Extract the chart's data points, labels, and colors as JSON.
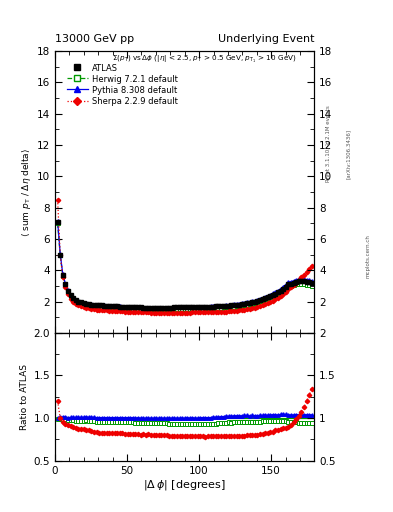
{
  "title_left": "13000 GeV pp",
  "title_right": "Underlying Event",
  "ylabel_main": "⟨ sum p_T / Δη delta⟩",
  "ylabel_ratio": "Ratio to ATLAS",
  "xlabel": "|Δ φ| [degrees]",
  "ylim_main": [
    0,
    18
  ],
  "ylim_ratio": [
    0.5,
    2.0
  ],
  "yticks_main": [
    2,
    4,
    6,
    8,
    10,
    12,
    14,
    16,
    18
  ],
  "yticks_ratio": [
    0.5,
    1.0,
    1.5,
    2.0
  ],
  "xlim": [
    0,
    180
  ],
  "xticks": [
    0,
    50,
    100,
    150
  ],
  "dphi": [
    1.8,
    3.6,
    5.4,
    7.2,
    9.0,
    10.8,
    12.6,
    14.4,
    16.2,
    18.0,
    19.8,
    21.6,
    23.4,
    25.2,
    27.0,
    28.8,
    30.6,
    32.4,
    34.2,
    36.0,
    37.8,
    39.6,
    41.4,
    43.2,
    45.0,
    46.8,
    48.6,
    50.4,
    52.2,
    54.0,
    55.8,
    57.6,
    59.4,
    61.2,
    63.0,
    64.8,
    66.6,
    68.4,
    70.2,
    72.0,
    73.8,
    75.6,
    77.4,
    79.2,
    81.0,
    82.8,
    84.6,
    86.4,
    88.2,
    90.0,
    91.8,
    93.6,
    95.4,
    97.2,
    99.0,
    100.8,
    102.6,
    104.4,
    106.2,
    108.0,
    109.8,
    111.6,
    113.4,
    115.2,
    117.0,
    118.8,
    120.6,
    122.4,
    124.2,
    126.0,
    127.8,
    129.6,
    131.4,
    133.2,
    135.0,
    136.8,
    138.6,
    140.4,
    142.2,
    144.0,
    145.8,
    147.6,
    149.4,
    151.2,
    153.0,
    154.8,
    156.6,
    158.4,
    160.2,
    162.0,
    163.8,
    165.6,
    167.4,
    169.2,
    171.0,
    172.8,
    174.6,
    176.4,
    178.2
  ],
  "atlas_y": [
    7.1,
    5.0,
    3.7,
    3.1,
    2.7,
    2.4,
    2.2,
    2.1,
    2.0,
    1.95,
    1.9,
    1.85,
    1.82,
    1.8,
    1.78,
    1.77,
    1.76,
    1.75,
    1.74,
    1.73,
    1.72,
    1.71,
    1.7,
    1.69,
    1.68,
    1.67,
    1.66,
    1.65,
    1.64,
    1.63,
    1.63,
    1.62,
    1.62,
    1.61,
    1.61,
    1.6,
    1.6,
    1.6,
    1.6,
    1.6,
    1.6,
    1.6,
    1.6,
    1.61,
    1.61,
    1.62,
    1.62,
    1.62,
    1.63,
    1.63,
    1.63,
    1.64,
    1.64,
    1.65,
    1.65,
    1.65,
    1.66,
    1.67,
    1.67,
    1.68,
    1.68,
    1.69,
    1.7,
    1.7,
    1.71,
    1.72,
    1.73,
    1.75,
    1.76,
    1.78,
    1.8,
    1.83,
    1.85,
    1.88,
    1.92,
    1.95,
    2.0,
    2.05,
    2.1,
    2.15,
    2.2,
    2.28,
    2.35,
    2.42,
    2.5,
    2.6,
    2.7,
    2.82,
    2.95,
    3.1,
    3.15,
    3.2,
    3.25,
    3.3,
    3.3,
    3.28,
    3.25,
    3.22,
    3.2
  ],
  "herwig_y": [
    7.0,
    4.95,
    3.65,
    3.05,
    2.65,
    2.35,
    2.15,
    2.04,
    1.94,
    1.89,
    1.84,
    1.8,
    1.76,
    1.73,
    1.71,
    1.69,
    1.68,
    1.67,
    1.66,
    1.65,
    1.64,
    1.63,
    1.62,
    1.61,
    1.6,
    1.59,
    1.58,
    1.57,
    1.56,
    1.55,
    1.54,
    1.53,
    1.53,
    1.52,
    1.52,
    1.51,
    1.51,
    1.5,
    1.5,
    1.5,
    1.5,
    1.5,
    1.5,
    1.5,
    1.5,
    1.5,
    1.5,
    1.51,
    1.51,
    1.51,
    1.52,
    1.52,
    1.53,
    1.53,
    1.54,
    1.54,
    1.55,
    1.56,
    1.57,
    1.57,
    1.58,
    1.59,
    1.6,
    1.61,
    1.62,
    1.63,
    1.65,
    1.66,
    1.68,
    1.7,
    1.72,
    1.74,
    1.77,
    1.8,
    1.83,
    1.87,
    1.91,
    1.96,
    2.01,
    2.07,
    2.14,
    2.2,
    2.27,
    2.35,
    2.43,
    2.52,
    2.61,
    2.72,
    2.84,
    2.97,
    3.01,
    3.05,
    3.09,
    3.12,
    3.12,
    3.1,
    3.08,
    3.05,
    3.02
  ],
  "pythia_y": [
    7.15,
    5.05,
    3.75,
    3.15,
    2.72,
    2.42,
    2.22,
    2.12,
    2.02,
    1.97,
    1.92,
    1.88,
    1.84,
    1.82,
    1.8,
    1.78,
    1.77,
    1.76,
    1.75,
    1.74,
    1.73,
    1.72,
    1.71,
    1.7,
    1.69,
    1.68,
    1.67,
    1.66,
    1.65,
    1.64,
    1.63,
    1.63,
    1.62,
    1.61,
    1.61,
    1.6,
    1.6,
    1.6,
    1.6,
    1.6,
    1.6,
    1.6,
    1.6,
    1.61,
    1.61,
    1.62,
    1.62,
    1.62,
    1.63,
    1.63,
    1.64,
    1.64,
    1.65,
    1.65,
    1.65,
    1.66,
    1.67,
    1.68,
    1.68,
    1.69,
    1.7,
    1.71,
    1.72,
    1.73,
    1.74,
    1.76,
    1.77,
    1.79,
    1.81,
    1.83,
    1.85,
    1.88,
    1.91,
    1.94,
    1.97,
    2.01,
    2.06,
    2.11,
    2.17,
    2.22,
    2.28,
    2.36,
    2.44,
    2.52,
    2.6,
    2.7,
    2.82,
    2.95,
    3.08,
    3.22,
    3.27,
    3.32,
    3.38,
    3.43,
    3.43,
    3.41,
    3.38,
    3.35,
    3.32
  ],
  "sherpa_y": [
    8.5,
    5.0,
    3.55,
    2.9,
    2.48,
    2.18,
    1.98,
    1.85,
    1.75,
    1.7,
    1.65,
    1.6,
    1.56,
    1.53,
    1.5,
    1.48,
    1.46,
    1.45,
    1.44,
    1.43,
    1.42,
    1.41,
    1.4,
    1.39,
    1.38,
    1.37,
    1.36,
    1.35,
    1.34,
    1.33,
    1.33,
    1.32,
    1.31,
    1.31,
    1.3,
    1.3,
    1.29,
    1.29,
    1.29,
    1.28,
    1.28,
    1.28,
    1.28,
    1.28,
    1.28,
    1.28,
    1.28,
    1.28,
    1.29,
    1.29,
    1.29,
    1.29,
    1.3,
    1.3,
    1.3,
    1.3,
    1.31,
    1.31,
    1.32,
    1.32,
    1.33,
    1.33,
    1.34,
    1.35,
    1.35,
    1.36,
    1.37,
    1.38,
    1.4,
    1.41,
    1.43,
    1.45,
    1.47,
    1.5,
    1.53,
    1.57,
    1.61,
    1.65,
    1.7,
    1.75,
    1.81,
    1.88,
    1.96,
    2.04,
    2.14,
    2.24,
    2.35,
    2.48,
    2.62,
    2.78,
    2.9,
    3.05,
    3.2,
    3.38,
    3.55,
    3.7,
    3.9,
    4.1,
    4.3
  ],
  "atlas_color": "#000000",
  "herwig_color": "#009900",
  "pythia_color": "#0000ee",
  "sherpa_color": "#ee0000",
  "herwig_ratio": [
    0.986,
    0.99,
    0.986,
    0.984,
    0.981,
    0.979,
    0.977,
    0.971,
    0.97,
    0.969,
    0.968,
    0.973,
    0.967,
    0.961,
    0.961,
    0.955,
    0.955,
    0.954,
    0.954,
    0.954,
    0.953,
    0.953,
    0.953,
    0.953,
    0.952,
    0.952,
    0.952,
    0.952,
    0.951,
    0.951,
    0.945,
    0.944,
    0.944,
    0.944,
    0.944,
    0.944,
    0.944,
    0.938,
    0.938,
    0.938,
    0.938,
    0.938,
    0.938,
    0.932,
    0.932,
    0.926,
    0.926,
    0.932,
    0.932,
    0.932,
    0.932,
    0.932,
    0.932,
    0.932,
    0.933,
    0.933,
    0.934,
    0.934,
    0.934,
    0.934,
    0.935,
    0.935,
    0.941,
    0.941,
    0.947,
    0.947,
    0.953,
    0.948,
    0.954,
    0.955,
    0.956,
    0.951,
    0.957,
    0.957,
    0.953,
    0.959,
    0.955,
    0.956,
    0.957,
    0.963,
    0.972,
    0.965,
    0.966,
    0.971,
    0.972,
    0.969,
    0.967,
    0.965,
    0.963,
    0.958,
    0.956,
    0.953,
    0.951,
    0.945,
    0.945,
    0.945,
    0.947,
    0.947,
    0.944
  ],
  "pythia_ratio": [
    1.007,
    1.01,
    1.014,
    1.016,
    1.007,
    1.008,
    1.009,
    1.01,
    1.01,
    1.01,
    1.011,
    1.016,
    1.011,
    1.011,
    1.011,
    1.006,
    1.006,
    1.006,
    1.006,
    1.006,
    1.006,
    1.006,
    1.006,
    1.006,
    1.006,
    1.006,
    1.006,
    1.006,
    1.006,
    1.006,
    1.0,
    1.006,
    1.0,
    1.0,
    1.0,
    1.0,
    1.0,
    1.0,
    1.0,
    1.0,
    1.0,
    1.0,
    1.0,
    1.0,
    1.0,
    1.0,
    1.0,
    1.0,
    1.0,
    1.0,
    1.006,
    1.0,
    1.006,
    1.0,
    1.0,
    1.006,
    1.006,
    1.006,
    1.006,
    1.006,
    1.012,
    1.012,
    1.012,
    1.018,
    1.018,
    1.023,
    1.023,
    1.023,
    1.028,
    1.028,
    1.028,
    1.027,
    1.032,
    1.032,
    1.026,
    1.031,
    1.03,
    1.029,
    1.033,
    1.033,
    1.036,
    1.035,
    1.038,
    1.041,
    1.04,
    1.038,
    1.044,
    1.045,
    1.044,
    1.039,
    1.038,
    1.038,
    1.042,
    1.039,
    1.039,
    1.04,
    1.04,
    1.04,
    1.038
  ],
  "sherpa_ratio": [
    1.2,
    1.0,
    0.959,
    0.935,
    0.919,
    0.908,
    0.9,
    0.881,
    0.875,
    0.872,
    0.868,
    0.865,
    0.857,
    0.85,
    0.843,
    0.836,
    0.83,
    0.829,
    0.828,
    0.827,
    0.826,
    0.825,
    0.824,
    0.823,
    0.821,
    0.82,
    0.819,
    0.818,
    0.817,
    0.816,
    0.815,
    0.815,
    0.808,
    0.813,
    0.807,
    0.813,
    0.806,
    0.806,
    0.806,
    0.8,
    0.8,
    0.8,
    0.8,
    0.794,
    0.794,
    0.79,
    0.79,
    0.79,
    0.791,
    0.791,
    0.791,
    0.791,
    0.791,
    0.788,
    0.788,
    0.788,
    0.789,
    0.784,
    0.79,
    0.786,
    0.792,
    0.786,
    0.788,
    0.794,
    0.79,
    0.791,
    0.792,
    0.789,
    0.795,
    0.792,
    0.794,
    0.793,
    0.795,
    0.798,
    0.797,
    0.805,
    0.805,
    0.805,
    0.81,
    0.814,
    0.823,
    0.825,
    0.834,
    0.843,
    0.856,
    0.862,
    0.87,
    0.879,
    0.888,
    0.897,
    0.921,
    0.953,
    0.985,
    1.024,
    1.076,
    1.128,
    1.2,
    1.273,
    1.344
  ]
}
